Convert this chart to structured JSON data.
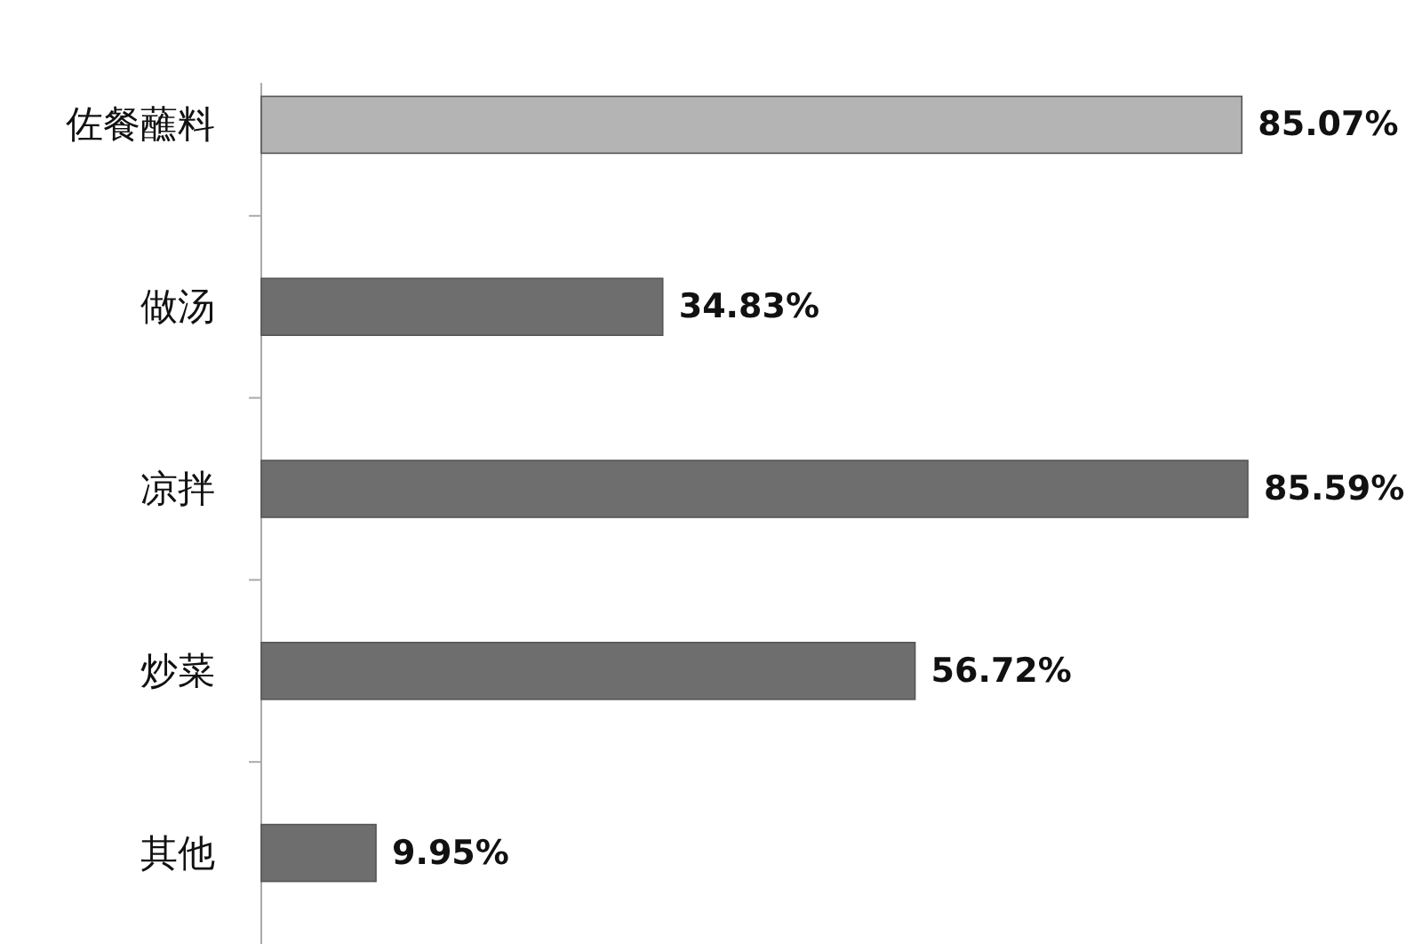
{
  "chart_data": {
    "type": "bar",
    "orientation": "horizontal",
    "value_labels": [
      "85.07%",
      "34.83%",
      "85.59%",
      "56.72%",
      "9.95%"
    ],
    "categories": [
      "佐餐蘸料",
      "做汤",
      "凉拌",
      "炒菜",
      "其他"
    ],
    "values": [
      85.07,
      34.83,
      85.59,
      56.72,
      9.95
    ],
    "colors": [
      "#b4b4b4",
      "#6e6e6e",
      "#6e6e6e",
      "#6e6e6e",
      "#6e6e6e"
    ]
  }
}
